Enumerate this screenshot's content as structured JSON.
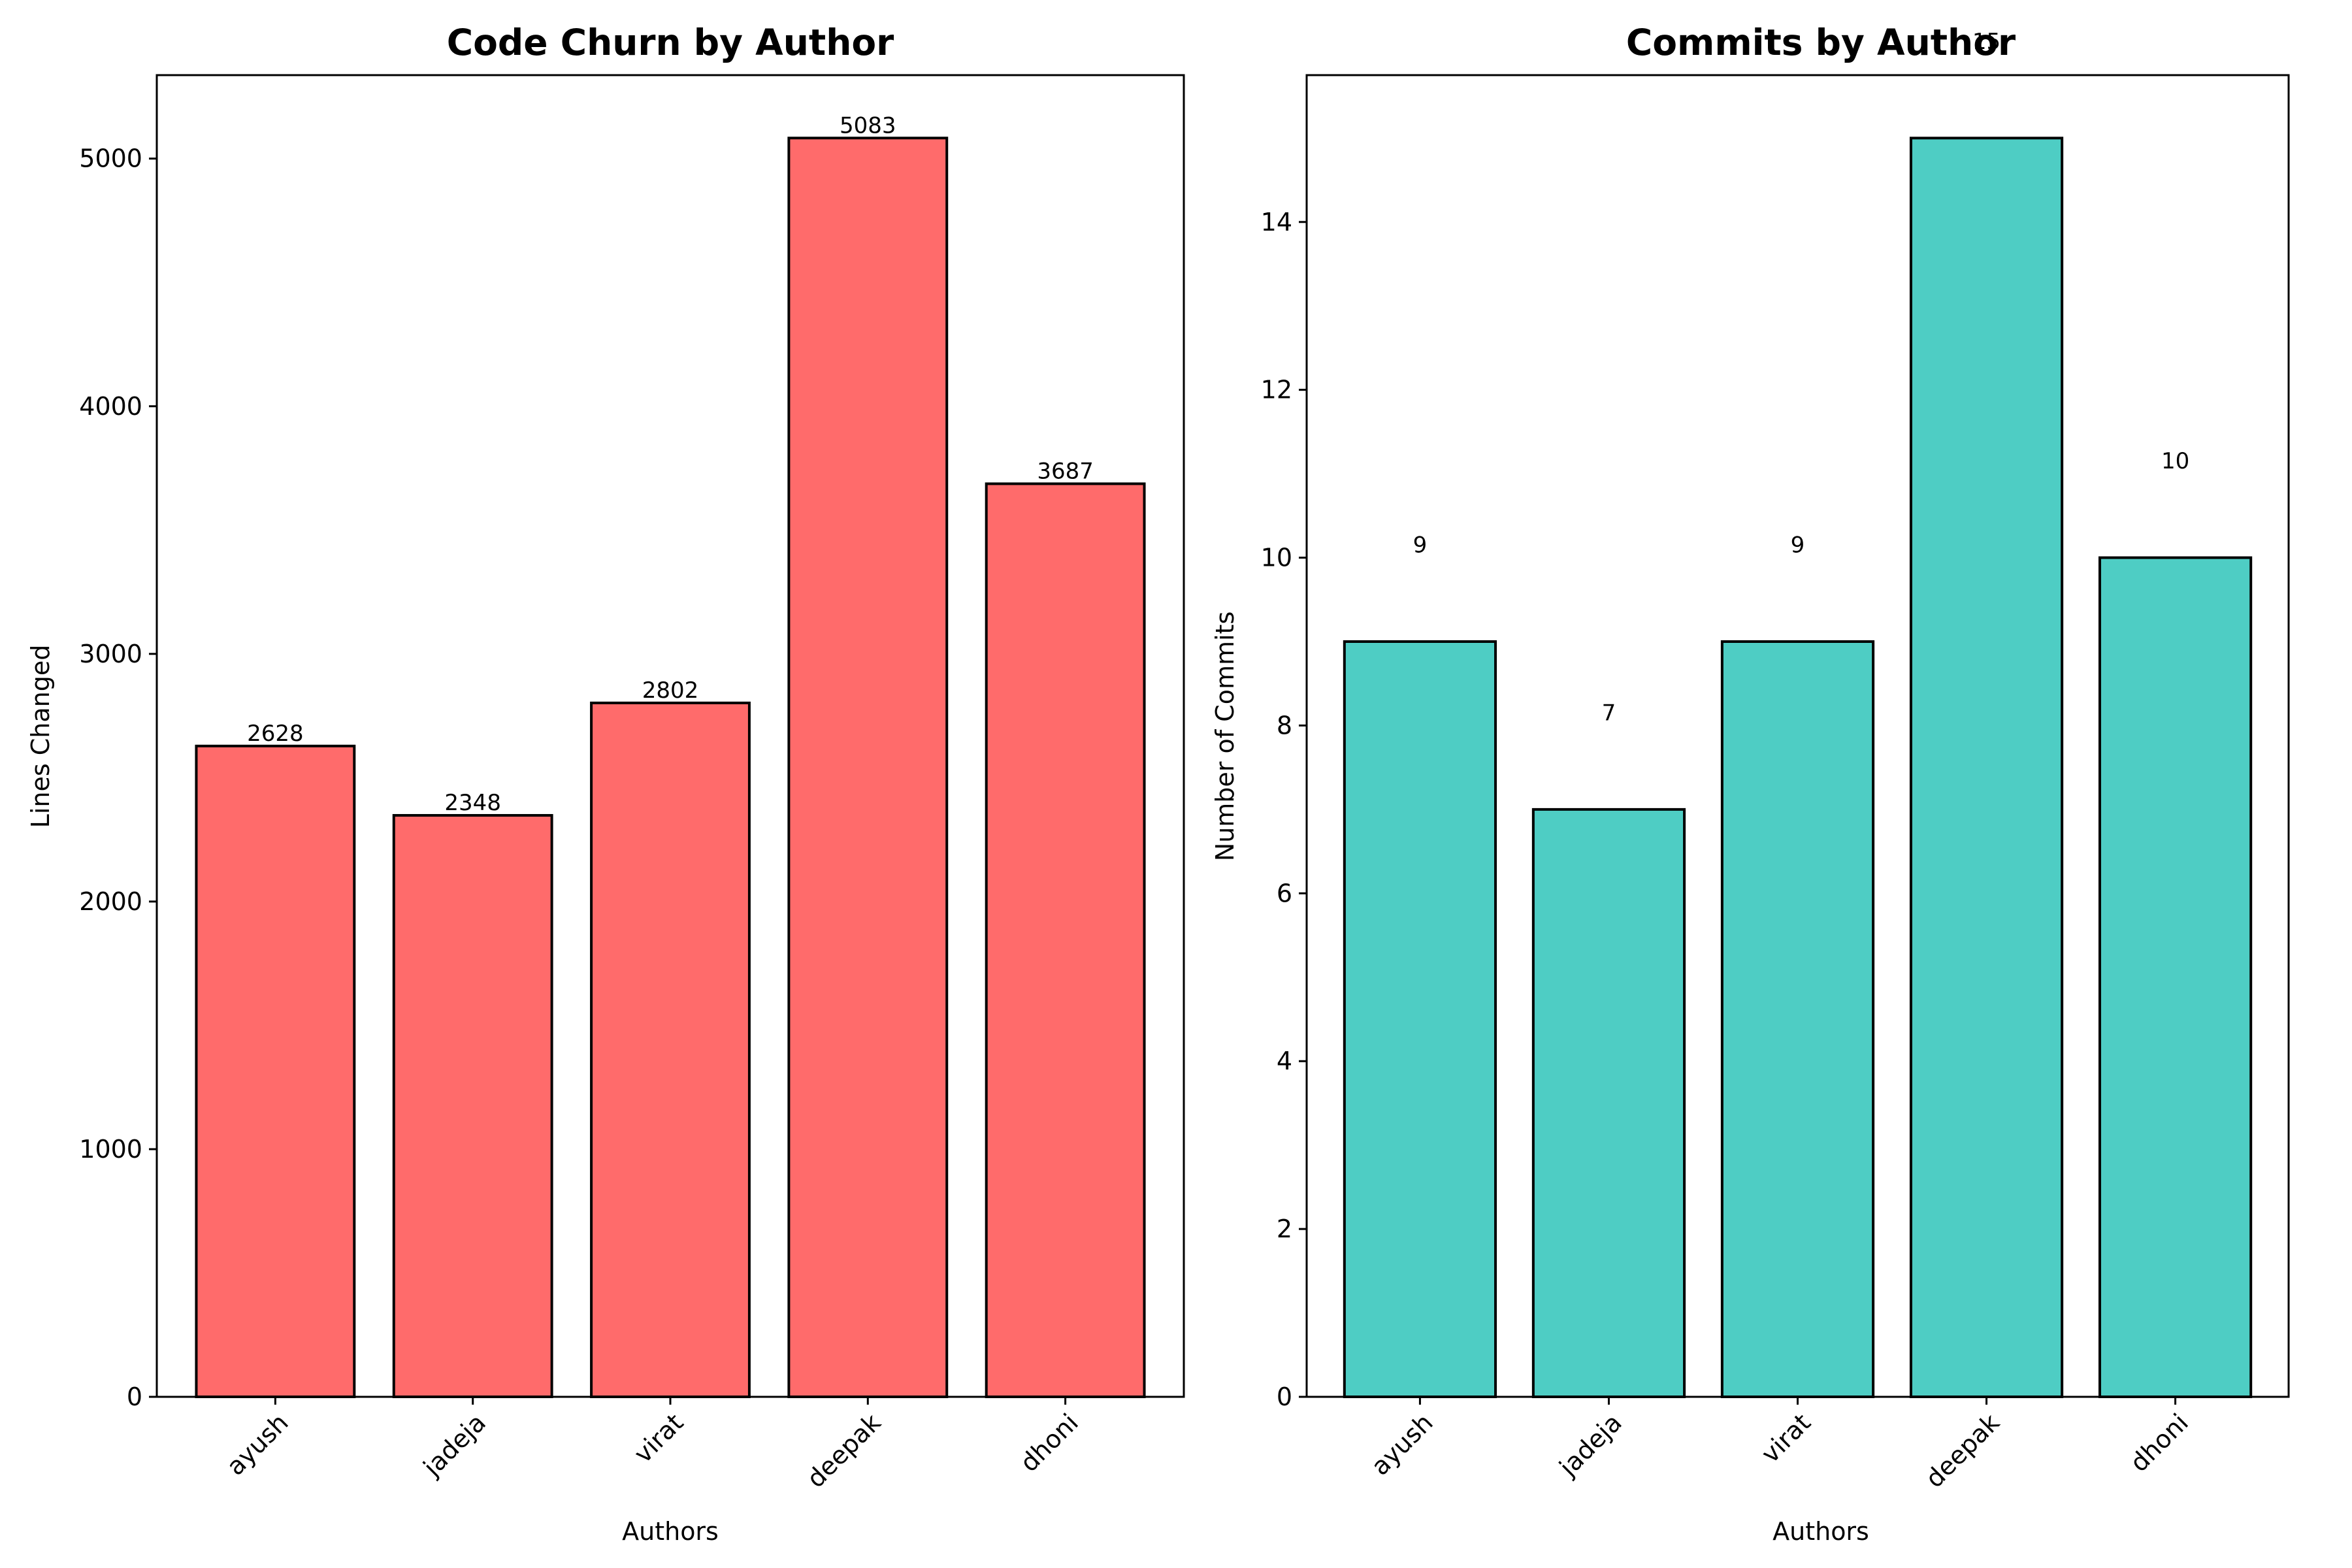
{
  "chart_data": [
    {
      "type": "bar",
      "title": "Code Churn by Author",
      "xlabel": "Authors",
      "ylabel": "Lines Changed",
      "categories": [
        "ayush",
        "jadeja",
        "virat",
        "deepak",
        "dhoni"
      ],
      "values": [
        2628,
        2348,
        2802,
        5083,
        3687
      ],
      "data_labels": [
        "2628",
        "2348",
        "2802",
        "5083",
        "3687"
      ],
      "ylim": [
        0,
        5337
      ],
      "yticks": [
        0,
        1000,
        2000,
        3000,
        4000,
        5000
      ],
      "ytick_labels": [
        "0",
        "1000",
        "2000",
        "3000",
        "4000",
        "5000"
      ],
      "bar_color": "#ff6b6b",
      "edge_color": "#000000",
      "grid": false,
      "label_offset": 0
    },
    {
      "type": "bar",
      "title": "Commits by Author",
      "xlabel": "Authors",
      "ylabel": "Number of Commits",
      "categories": [
        "ayush",
        "jadeja",
        "virat",
        "deepak",
        "dhoni"
      ],
      "values": [
        9,
        7,
        9,
        15,
        10
      ],
      "data_labels": [
        "9",
        "7",
        "9",
        "15",
        "10"
      ],
      "ylim": [
        0,
        15.75
      ],
      "yticks": [
        0,
        2,
        4,
        6,
        8,
        10,
        12,
        14
      ],
      "ytick_labels": [
        "0",
        "2",
        "4",
        "6",
        "8",
        "10",
        "12",
        "14"
      ],
      "bar_color": "#4ecdc4",
      "edge_color": "#000000",
      "grid": false,
      "label_offset": 1
    }
  ]
}
